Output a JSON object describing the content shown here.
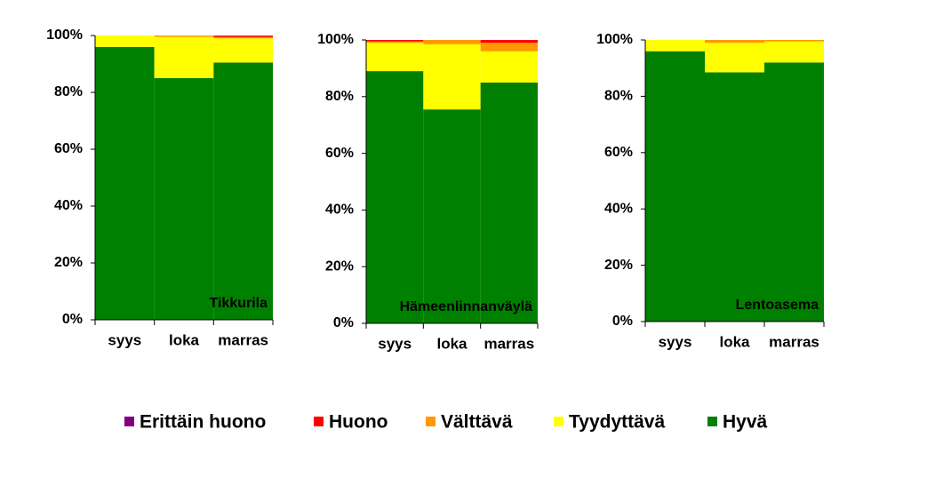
{
  "chart_data": {
    "type": "stacked_bar",
    "legend": [
      {
        "name": "Erittäin huono",
        "color": "#800080"
      },
      {
        "name": "Huono",
        "color": "#ff0000"
      },
      {
        "name": "Välttävä",
        "color": "#ff9900"
      },
      {
        "name": "Tyydyttävä",
        "color": "#ffff00"
      },
      {
        "name": "Hyvä",
        "color": "#008000"
      }
    ],
    "ylim": [
      0,
      100
    ],
    "panels": [
      {
        "label": "Tikkurila",
        "categories": [
          "syys",
          "loka",
          "marras"
        ],
        "yticks": [
          {
            "value": 0,
            "label": "0%"
          },
          {
            "value": 20,
            "label": "20%"
          },
          {
            "value": 40,
            "label": "40%"
          },
          {
            "value": 60,
            "label": "60%"
          },
          {
            "value": 80,
            "label": "80%"
          },
          {
            "value": 100,
            "label": "100%"
          }
        ],
        "series": [
          {
            "values": [
              0,
              0,
              0
            ]
          },
          {
            "values": [
              0,
              0,
              0.5
            ]
          },
          {
            "values": [
              0,
              0.5,
              0.5
            ]
          },
          {
            "values": [
              4,
              14.5,
              8.5
            ]
          },
          {
            "values": [
              96,
              85,
              90.5
            ]
          }
        ]
      },
      {
        "label": "Hämeenlinnanväylä",
        "categories": [
          "syys",
          "loka",
          "marras"
        ],
        "yticks": [
          {
            "value": 0,
            "label": "0%"
          },
          {
            "value": 20,
            "label": "20%"
          },
          {
            "value": 40,
            "label": "40%"
          },
          {
            "value": 60,
            "label": "60%"
          },
          {
            "value": 80,
            "label": "80%"
          },
          {
            "value": 100,
            "label": "100%"
          }
        ],
        "series": [
          {
            "values": [
              0,
              0,
              0
            ]
          },
          {
            "values": [
              0.5,
              0,
              1
            ]
          },
          {
            "values": [
              0.5,
              1.5,
              3
            ]
          },
          {
            "values": [
              10,
              23,
              11
            ]
          },
          {
            "values": [
              89,
              75.5,
              85
            ]
          }
        ]
      },
      {
        "label": "Lentoasema",
        "categories": [
          "syys",
          "loka",
          "marras"
        ],
        "yticks": [
          {
            "value": 0,
            "label": "0%"
          },
          {
            "value": 20,
            "label": "20%"
          },
          {
            "value": 40,
            "label": "40%"
          },
          {
            "value": 60,
            "label": "60%"
          },
          {
            "value": 80,
            "label": "80%"
          },
          {
            "value": 100,
            "label": "100%"
          }
        ],
        "series": [
          {
            "values": [
              0,
              0,
              0
            ]
          },
          {
            "values": [
              0,
              0,
              0
            ]
          },
          {
            "values": [
              0,
              1,
              0.5
            ]
          },
          {
            "values": [
              4,
              10.5,
              7.5
            ]
          },
          {
            "values": [
              96,
              88.5,
              92
            ]
          }
        ]
      }
    ]
  }
}
